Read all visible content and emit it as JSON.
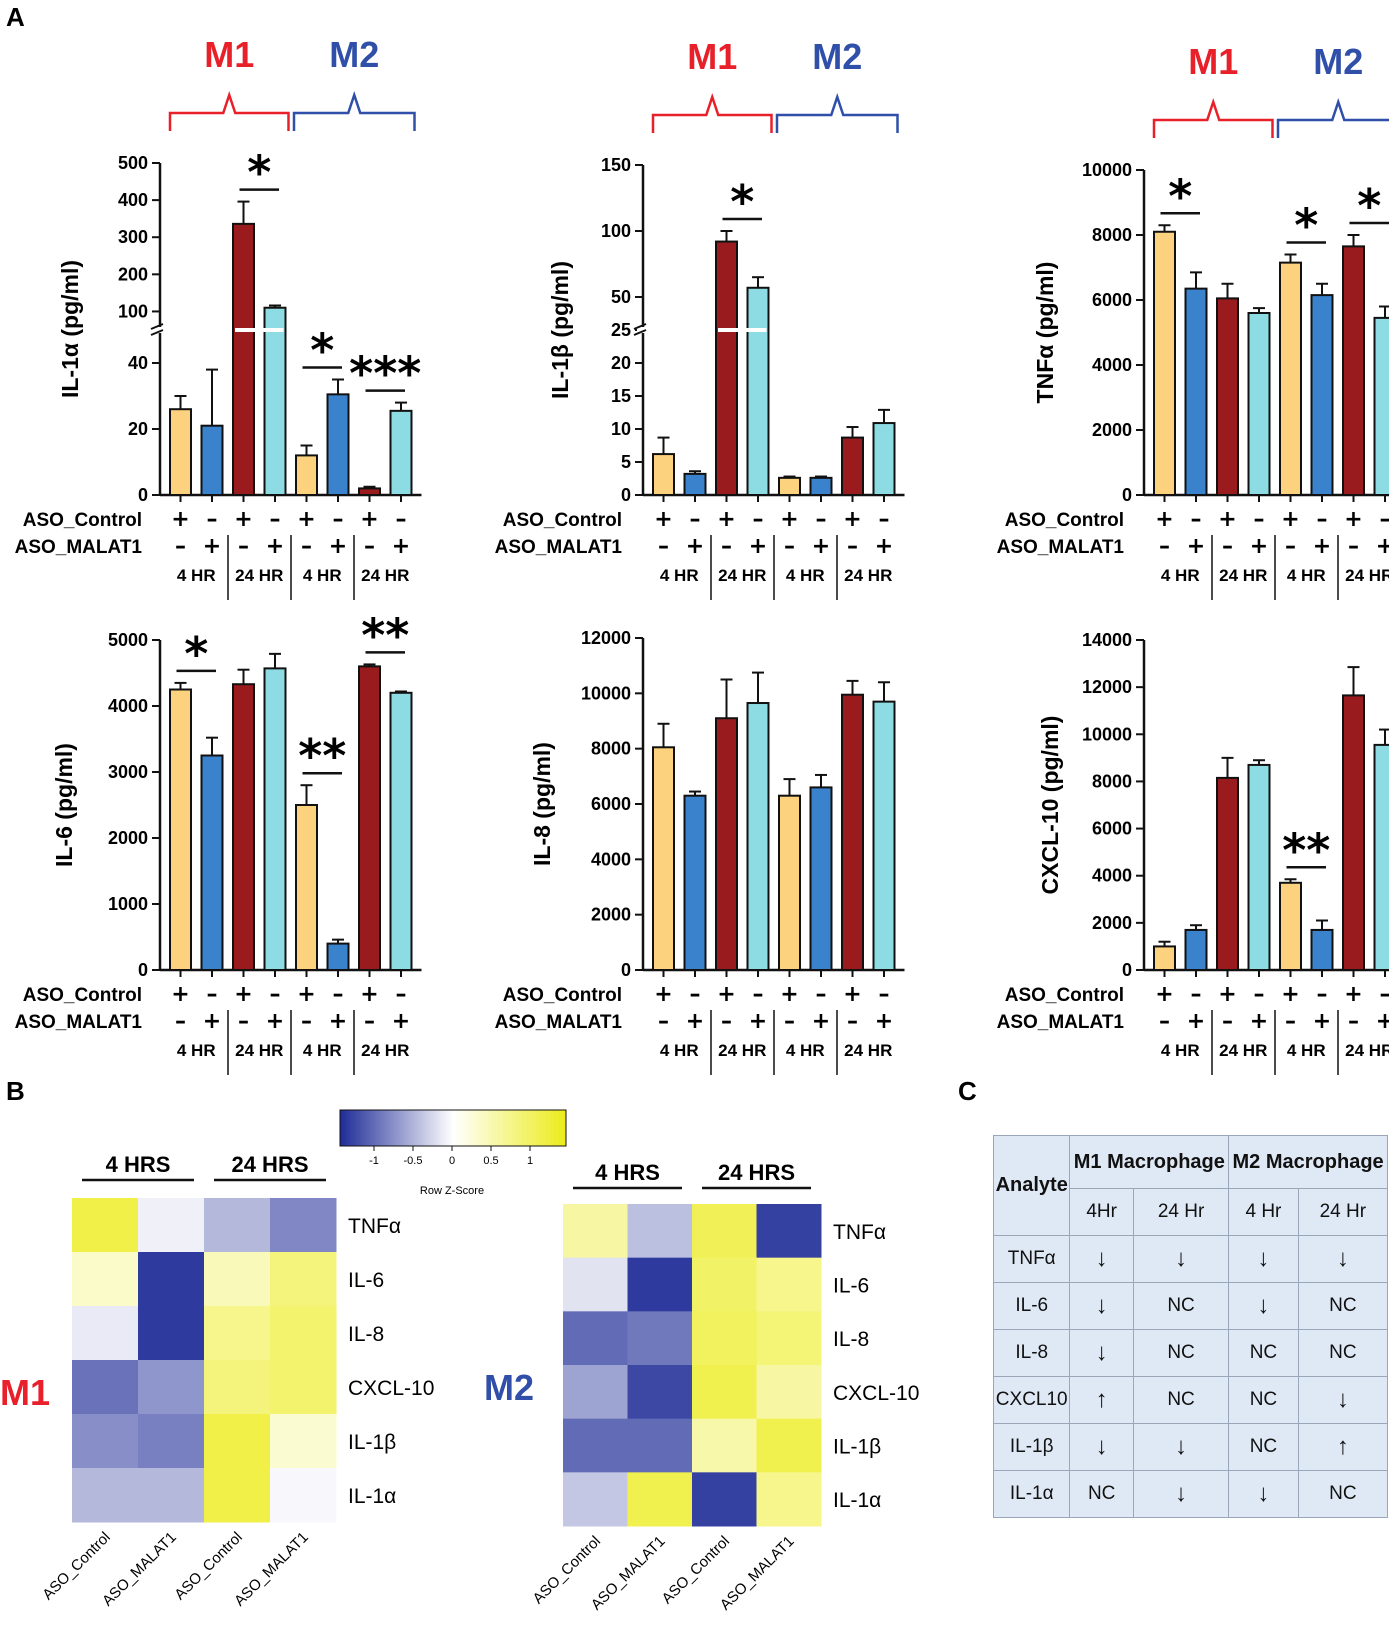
{
  "panel_labels": {
    "a": "A",
    "b": "B",
    "c": "C"
  },
  "colors": {
    "yellow": "#fdd27e",
    "blue": "#3b82cc",
    "darkred": "#9a1b1e",
    "cyan": "#8ddce3",
    "m1": "#e8202a",
    "m2": "#2f4fa8",
    "heat_low": "#1f2c97",
    "heat_mid": "#ffffff",
    "heat_high": "#ecec1a"
  },
  "treatment_labels": {
    "row1": "ASO_Control",
    "row2": "ASO_MALAT1",
    "signs1": [
      "+",
      "–",
      "+",
      "–",
      "+",
      "–",
      "+",
      "–"
    ],
    "signs2": [
      "–",
      "+",
      "–",
      "+",
      "–",
      "+",
      "–",
      "+"
    ]
  },
  "groups": {
    "m1": "M1",
    "m2": "M2",
    "times": [
      "4 HR",
      "24 HR",
      "4 HR",
      "24 HR"
    ]
  },
  "chart_data": [
    {
      "type": "bar",
      "id": "il1a",
      "ylabel": "IL-1α (pg/ml)",
      "broken_axis": true,
      "lower_ticks": [
        0,
        20,
        40
      ],
      "lower_range": [
        0,
        50
      ],
      "upper_ticks": [
        100,
        200,
        300,
        400,
        500
      ],
      "upper_range": [
        50,
        500
      ],
      "values": [
        26,
        21,
        336,
        110,
        12,
        30.5,
        2,
        25.5
      ],
      "errors": [
        4,
        17,
        60,
        6,
        3,
        4.5,
        0.5,
        2.5
      ],
      "significance": [
        {
          "pair": [
            2,
            3
          ],
          "label": "*"
        },
        {
          "pair": [
            4,
            5
          ],
          "label": "*"
        },
        {
          "pair": [
            6,
            7
          ],
          "label": "***"
        }
      ],
      "show_groups": true
    },
    {
      "type": "bar",
      "id": "il1b",
      "ylabel": "IL-1β (pg/ml)",
      "broken_axis": true,
      "lower_ticks": [
        0,
        5,
        10,
        15,
        20,
        25
      ],
      "lower_range": [
        0,
        25
      ],
      "upper_ticks": [
        50,
        100,
        150
      ],
      "upper_range": [
        25,
        150
      ],
      "values": [
        6.2,
        3.2,
        92,
        57,
        2.6,
        2.6,
        8.7,
        10.9
      ],
      "errors": [
        2.5,
        0.4,
        8,
        8,
        0.2,
        0.2,
        1.6,
        2.0
      ],
      "significance": [
        {
          "pair": [
            2,
            3
          ],
          "label": "*"
        }
      ],
      "show_groups": true
    },
    {
      "type": "bar",
      "id": "tnfa",
      "ylabel": "TNFα (pg/ml)",
      "broken_axis": false,
      "ticks": [
        0,
        2000,
        4000,
        6000,
        8000,
        10000
      ],
      "ylim": [
        0,
        10000
      ],
      "values": [
        8100,
        6350,
        6050,
        5600,
        7150,
        6150,
        7650,
        5450
      ],
      "errors": [
        200,
        500,
        450,
        150,
        250,
        350,
        350,
        350
      ],
      "significance": [
        {
          "pair": [
            0,
            1
          ],
          "label": "*"
        },
        {
          "pair": [
            4,
            5
          ],
          "label": "*"
        },
        {
          "pair": [
            6,
            7
          ],
          "label": "*"
        }
      ],
      "show_groups": true
    },
    {
      "type": "bar",
      "id": "il6",
      "ylabel": "IL-6 (pg/ml)",
      "broken_axis": false,
      "ticks": [
        0,
        1000,
        2000,
        3000,
        4000,
        5000
      ],
      "ylim": [
        0,
        5000
      ],
      "values": [
        4250,
        3250,
        4330,
        4570,
        2500,
        400,
        4600,
        4200
      ],
      "errors": [
        100,
        270,
        220,
        220,
        300,
        60,
        30,
        20
      ],
      "significance": [
        {
          "pair": [
            0,
            1
          ],
          "label": "*"
        },
        {
          "pair": [
            4,
            5
          ],
          "label": "**"
        },
        {
          "pair": [
            6,
            7
          ],
          "label": "**"
        }
      ],
      "show_groups": false
    },
    {
      "type": "bar",
      "id": "il8",
      "ylabel": "IL-8 (pg/ml)",
      "broken_axis": false,
      "ticks": [
        0,
        2000,
        4000,
        6000,
        8000,
        10000,
        12000
      ],
      "ylim": [
        0,
        12000
      ],
      "values": [
        8050,
        6300,
        9100,
        9650,
        6300,
        6600,
        9950,
        9700
      ],
      "errors": [
        850,
        150,
        1400,
        1100,
        600,
        450,
        500,
        700
      ],
      "significance": [],
      "show_groups": false
    },
    {
      "type": "bar",
      "id": "cxcl10",
      "ylabel": "CXCL-10 (pg/ml)",
      "broken_axis": false,
      "ticks": [
        0,
        2000,
        4000,
        6000,
        8000,
        10000,
        12000,
        14000
      ],
      "ylim": [
        0,
        14000
      ],
      "values": [
        1000,
        1700,
        8150,
        8700,
        3700,
        1700,
        11650,
        9550
      ],
      "errors": [
        200,
        200,
        850,
        200,
        150,
        400,
        1200,
        650
      ],
      "significance": [
        {
          "pair": [
            4,
            5
          ],
          "label": "**"
        }
      ],
      "show_groups": false
    }
  ],
  "heatmap": {
    "legend": {
      "ticks": [
        "-1",
        "-0.5",
        "0",
        "0.5",
        "1"
      ],
      "title": "Row Z-Score"
    },
    "rows": [
      "TNFα",
      "IL-6",
      "IL-8",
      "CXCL-10",
      "IL-1β",
      "IL-1α"
    ],
    "columns": [
      "ASO_Control",
      "ASO_MALAT1",
      "ASO_Control",
      "ASO_MALAT1"
    ],
    "time_labels": [
      "4 HRS",
      "24 HRS"
    ],
    "m1": {
      "label": "M1",
      "z": [
        [
          1.2,
          -0.1,
          -0.5,
          -0.85
        ],
        [
          0.35,
          -1.4,
          0.45,
          0.85
        ],
        [
          -0.15,
          -1.4,
          0.75,
          0.95
        ],
        [
          -1.0,
          -0.75,
          0.85,
          0.95
        ],
        [
          -0.8,
          -0.9,
          1.2,
          0.3
        ],
        [
          -0.5,
          -0.5,
          1.2,
          -0.05
        ]
      ]
    },
    "m2": {
      "label": "M2",
      "z": [
        [
          0.6,
          -0.45,
          1.1,
          -1.35
        ],
        [
          -0.2,
          -1.4,
          1.0,
          0.75
        ],
        [
          -1.05,
          -0.95,
          1.05,
          0.9
        ],
        [
          -0.65,
          -1.3,
          1.15,
          0.6
        ],
        [
          -1.05,
          -1.05,
          0.55,
          1.15
        ],
        [
          -0.4,
          1.15,
          -1.35,
          0.75
        ]
      ]
    }
  },
  "table": {
    "header": {
      "analyte": "Analyte",
      "m1": "M1 Macrophage",
      "m2": "M2 Macrophage",
      "times": [
        "4Hr",
        "24 Hr",
        "4 Hr",
        "24 Hr"
      ]
    },
    "rows": [
      {
        "analyte": "TNFα",
        "values": [
          "↓",
          "↓",
          "↓",
          "↓"
        ]
      },
      {
        "analyte": "IL-6",
        "values": [
          "↓",
          "NC",
          "↓",
          "NC"
        ]
      },
      {
        "analyte": "IL-8",
        "values": [
          "↓",
          "NC",
          "NC",
          "NC"
        ]
      },
      {
        "analyte": "CXCL10",
        "values": [
          "↑",
          "NC",
          "NC",
          "↓"
        ]
      },
      {
        "analyte": "IL-1β",
        "values": [
          "↓",
          "↓",
          "NC",
          "↑"
        ]
      },
      {
        "analyte": "IL-1α",
        "values": [
          "NC",
          "↓",
          "↓",
          "NC"
        ]
      }
    ]
  }
}
